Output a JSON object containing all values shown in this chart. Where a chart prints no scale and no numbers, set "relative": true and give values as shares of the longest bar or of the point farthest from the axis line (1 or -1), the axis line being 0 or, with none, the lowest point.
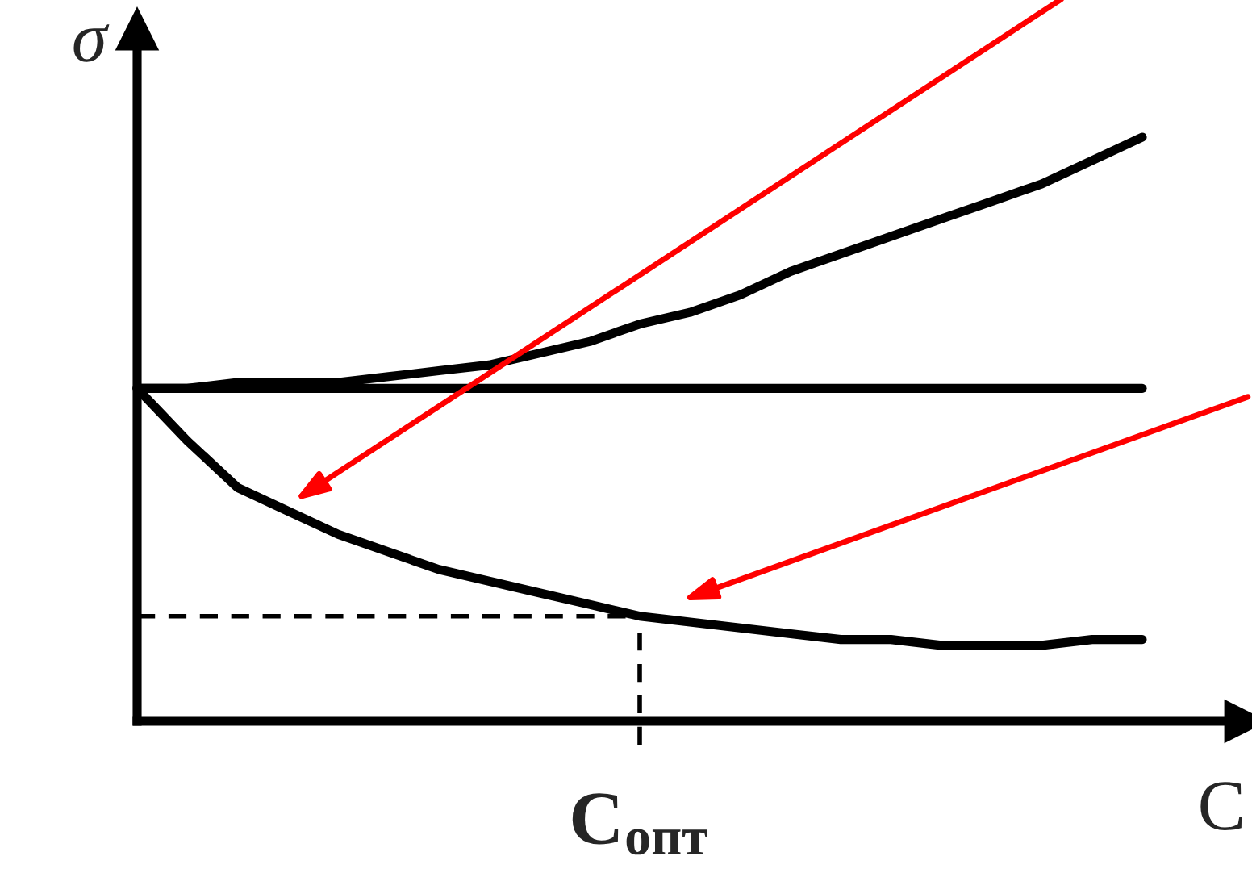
{
  "chart_data": {
    "type": "line",
    "relative": true,
    "xlabel": "C",
    "ylabel": "σ",
    "legend": false,
    "marker": "none",
    "categories": [
      null,
      null,
      null,
      null,
      null,
      null,
      null,
      null,
      null,
      null,
      null,
      null,
      null,
      null,
      null,
      null,
      null,
      null,
      null,
      null,
      null
    ],
    "series": [
      {
        "color": "#000000",
        "line_style": "solid",
        "values": [
          0.57,
          0.57,
          0.58,
          0.58,
          0.58,
          0.59,
          0.6,
          0.61,
          0.63,
          0.65,
          0.68,
          0.7,
          0.73,
          0.77,
          0.8,
          0.83,
          0.86,
          0.89,
          0.92,
          0.96,
          1
        ]
      },
      {
        "color": "#000000",
        "line_style": "solid",
        "values": [
          0.57,
          0.57,
          0.57,
          0.57,
          0.57,
          0.57,
          0.57,
          0.57,
          0.57,
          0.57,
          0.57,
          0.57,
          0.57,
          0.57,
          0.57,
          0.57,
          0.57,
          0.57,
          0.57,
          0.57,
          0.57
        ]
      },
      {
        "color": "#000000",
        "line_style": "solid",
        "values": [
          0.57,
          0.48,
          0.4,
          0.36,
          0.32,
          0.29,
          0.26,
          0.24,
          0.22,
          0.2,
          0.18,
          0.17,
          0.16,
          0.15,
          0.14,
          0.14,
          0.13,
          0.13,
          0.13,
          0.14,
          0.14
        ]
      },
      {
        "color": "#000000",
        "line_style": "dashed",
        "values": [
          0.18,
          0.18,
          0.18,
          0.18,
          0.18,
          0.18,
          0.18,
          0.18,
          0.18,
          0.18,
          0.18,
          null,
          null,
          null,
          null,
          null,
          null,
          null,
          null,
          null,
          null
        ]
      }
    ],
    "annotations": [
      "C$_{опт}$"
    ]
  }
}
